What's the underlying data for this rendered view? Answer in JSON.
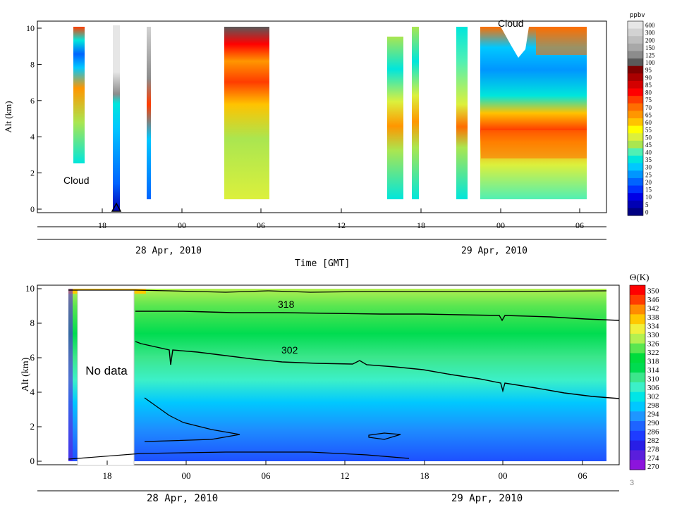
{
  "colors": {
    "ozone_scale": [
      "#e6e6e6",
      "#d2d2d2",
      "#bebebe",
      "#a8a8a8",
      "#8c8c8c",
      "#5a5a5a",
      "#7f0000",
      "#aa0000",
      "#d40000",
      "#ff0000",
      "#ff3c00",
      "#ff6e00",
      "#ff9600",
      "#ffc300",
      "#ffff00",
      "#dcf03c",
      "#aae650",
      "#50f0b4",
      "#00e6dc",
      "#00c8ff",
      "#0096ff",
      "#0064ff",
      "#0032ff",
      "#0000e6",
      "#0000b4",
      "#000082"
    ],
    "theta_scale": [
      "#ff0000",
      "#ff3c00",
      "#ff8c00",
      "#ffc800",
      "#f0f03c",
      "#b4f050",
      "#5ae650",
      "#00dc3c",
      "#00dc50",
      "#3ce68c",
      "#3cf0c8",
      "#00e6e6",
      "#00c8ff",
      "#1e96ff",
      "#1e64ff",
      "#1e3cff",
      "#281ee6",
      "#5a1edc",
      "#8c14dc"
    ]
  },
  "chart_data": [
    {
      "type": "heatmap",
      "ylabel": "Alt (km)",
      "xlabel": "Time [GMT]",
      "ylim": [
        0,
        10
      ],
      "yticks": [
        "0",
        "2",
        "4",
        "6",
        "8",
        "10"
      ],
      "xticks": [
        "18",
        "00",
        "06",
        "12",
        "18",
        "00",
        "06"
      ],
      "date_labels": [
        "28 Apr, 2010",
        "29 Apr, 2010"
      ],
      "colorbar_title": "ppbv",
      "colorbar_levels": [
        "600",
        "300",
        "200",
        "150",
        "125",
        "100",
        "95",
        "90",
        "85",
        "80",
        "75",
        "70",
        "65",
        "60",
        "55",
        "50",
        "45",
        "40",
        "35",
        "30",
        "25",
        "20",
        "15",
        "10",
        "5",
        "0"
      ],
      "annotations": [
        "Cloud",
        "Cloud"
      ],
      "ozone_ppbv_at_4km": {
        "x": [
          "27 Apr 18:00",
          "28 Apr 06:00",
          "28 Apr 18:00",
          "29 Apr 00:00",
          "29 Apr 06:00"
        ],
        "values": [
          45,
          65,
          75,
          85,
          65
        ]
      }
    },
    {
      "type": "heatmap",
      "ylabel": "Alt (km)",
      "xticks": [
        "18",
        "00",
        "06",
        "12",
        "18",
        "00",
        "06"
      ],
      "date_labels": [
        "28 Apr, 2010",
        "29 Apr, 2010"
      ],
      "ylim": [
        0,
        10
      ],
      "yticks": [
        "0",
        "2",
        "4",
        "6",
        "8",
        "10"
      ],
      "colorbar_title": "Θ(K)",
      "colorbar_levels": [
        "350",
        "346",
        "342",
        "338",
        "334",
        "330",
        "326",
        "322",
        "318",
        "314",
        "310",
        "306",
        "302",
        "298",
        "294",
        "290",
        "286",
        "282",
        "278",
        "274",
        "270"
      ],
      "annotations": [
        "No data"
      ],
      "contour_labels": [
        "318",
        "302"
      ],
      "contour_318_alt_km": {
        "x": [
          "27 Apr 21:00",
          "28 Apr 12:00",
          "29 Apr 06:00"
        ],
        "values": [
          8.6,
          8.5,
          8.1
        ]
      },
      "contour_302_alt_km": {
        "x": [
          "27 Apr 21:00",
          "28 Apr 12:00",
          "29 Apr 06:00"
        ],
        "values": [
          6.7,
          5.6,
          3.6
        ]
      }
    }
  ],
  "slide_number": "3"
}
